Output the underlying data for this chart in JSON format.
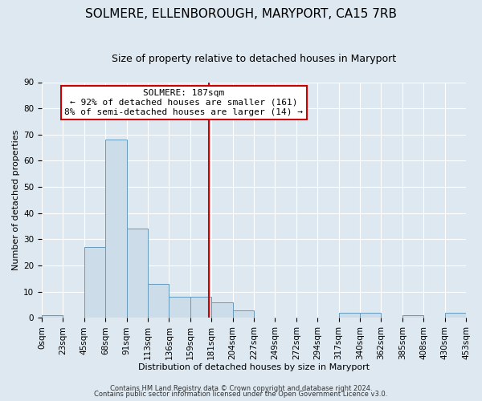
{
  "title": "SOLMERE, ELLENBOROUGH, MARYPORT, CA15 7RB",
  "subtitle": "Size of property relative to detached houses in Maryport",
  "xlabel": "Distribution of detached houses by size in Maryport",
  "ylabel": "Number of detached properties",
  "bin_labels": [
    "0sqm",
    "23sqm",
    "45sqm",
    "68sqm",
    "91sqm",
    "113sqm",
    "136sqm",
    "159sqm",
    "181sqm",
    "204sqm",
    "227sqm",
    "249sqm",
    "272sqm",
    "294sqm",
    "317sqm",
    "340sqm",
    "362sqm",
    "385sqm",
    "408sqm",
    "430sqm",
    "453sqm"
  ],
  "bar_heights": [
    1,
    0,
    27,
    68,
    34,
    13,
    8,
    8,
    6,
    3,
    0,
    0,
    0,
    0,
    2,
    2,
    0,
    1,
    0,
    2,
    0
  ],
  "bar_color": "#ccdce8",
  "bar_edge_color": "#6699bb",
  "ylim": [
    0,
    90
  ],
  "yticks": [
    0,
    10,
    20,
    30,
    40,
    50,
    60,
    70,
    80,
    90
  ],
  "property_line_x": 181,
  "bin_width": 23,
  "annotation_title": "SOLMERE: 187sqm",
  "annotation_line1": "← 92% of detached houses are smaller (161)",
  "annotation_line2": "8% of semi-detached houses are larger (14) →",
  "annotation_box_color": "#ffffff",
  "annotation_box_edge": "#cc0000",
  "vline_color": "#cc0000",
  "footer1": "Contains HM Land Registry data © Crown copyright and database right 2024.",
  "footer2": "Contains public sector information licensed under the Open Government Licence v3.0.",
  "background_color": "#dde8f0",
  "plot_bg_color": "#dde8f0",
  "grid_color": "#ffffff",
  "title_fontsize": 11,
  "subtitle_fontsize": 9,
  "axis_fontsize": 8,
  "tick_fontsize": 7.5,
  "footer_fontsize": 6
}
